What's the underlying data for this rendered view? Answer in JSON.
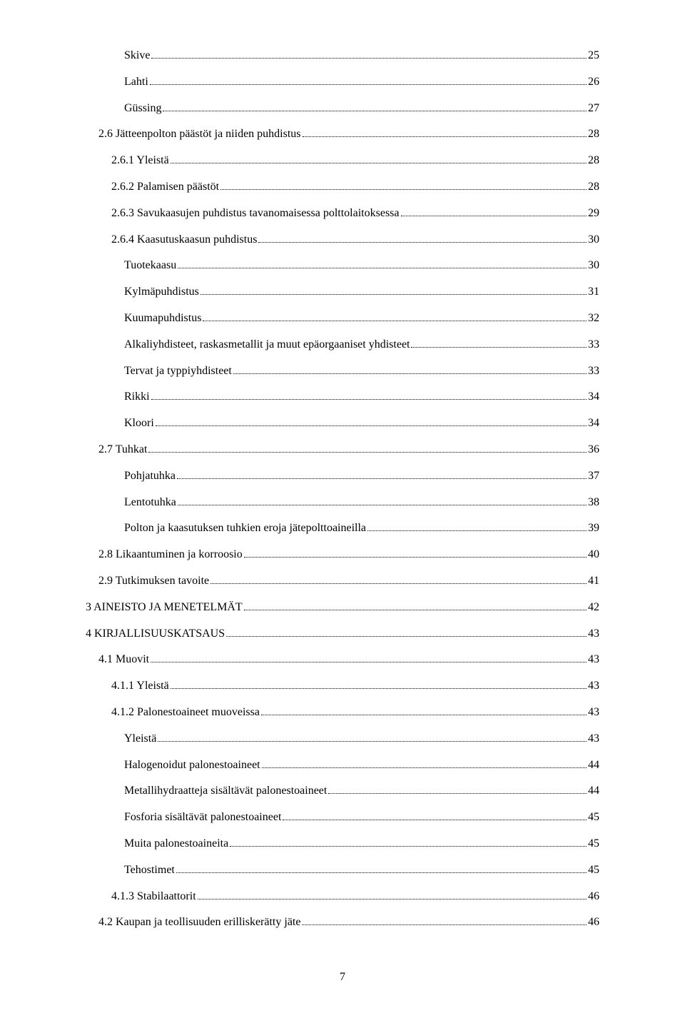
{
  "page_number": "7",
  "entries": [
    {
      "indent": 4,
      "label": "Skive",
      "page": "25"
    },
    {
      "indent": 4,
      "label": "Lahti",
      "page": "26"
    },
    {
      "indent": 4,
      "label": "Güssing",
      "page": "27"
    },
    {
      "indent": 2,
      "label": "2.6 Jätteenpolton päästöt ja niiden puhdistus",
      "page": "28"
    },
    {
      "indent": 3,
      "label": "2.6.1 Yleistä",
      "page": "28"
    },
    {
      "indent": 3,
      "label": "2.6.2 Palamisen päästöt",
      "page": "28"
    },
    {
      "indent": 3,
      "label": "2.6.3 Savukaasujen puhdistus tavanomaisessa polttolaitoksessa",
      "page": "29"
    },
    {
      "indent": 3,
      "label": "2.6.4 Kaasutuskaasun puhdistus",
      "page": "30"
    },
    {
      "indent": 4,
      "label": "Tuotekaasu",
      "page": "30"
    },
    {
      "indent": 4,
      "label": "Kylmäpuhdistus",
      "page": "31"
    },
    {
      "indent": 4,
      "label": "Kuumapuhdistus",
      "page": "32"
    },
    {
      "indent": 4,
      "label": "Alkaliyhdisteet, raskasmetallit ja muut epäorgaaniset yhdisteet",
      "page": "33"
    },
    {
      "indent": 4,
      "label": "Tervat ja typpiyhdisteet",
      "page": "33"
    },
    {
      "indent": 4,
      "label": "Rikki",
      "page": "34"
    },
    {
      "indent": 4,
      "label": "Kloori",
      "page": "34"
    },
    {
      "indent": 2,
      "label": "2.7 Tuhkat",
      "page": "36"
    },
    {
      "indent": 4,
      "label": "Pohjatuhka",
      "page": "37"
    },
    {
      "indent": 4,
      "label": "Lentotuhka",
      "page": "38"
    },
    {
      "indent": 4,
      "label": "Polton ja kaasutuksen tuhkien eroja jätepolttoaineilla",
      "page": "39"
    },
    {
      "indent": 2,
      "label": "2.8 Likaantuminen ja korroosio",
      "page": "40"
    },
    {
      "indent": 2,
      "label": "2.9 Tutkimuksen tavoite",
      "page": "41"
    },
    {
      "indent": 1,
      "label": "3 AINEISTO JA MENETELMÄT",
      "page": "42"
    },
    {
      "indent": 1,
      "label": "4 KIRJALLISUUSKATSAUS",
      "page": "43"
    },
    {
      "indent": 2,
      "label": "4.1 Muovit",
      "page": "43"
    },
    {
      "indent": 3,
      "label": "4.1.1 Yleistä",
      "page": "43"
    },
    {
      "indent": 3,
      "label": "4.1.2 Palonestoaineet muoveissa",
      "page": "43"
    },
    {
      "indent": 4,
      "label": "Yleistä",
      "page": "43"
    },
    {
      "indent": 4,
      "label": "Halogenoidut palonestoaineet",
      "page": "44"
    },
    {
      "indent": 4,
      "label": "Metallihydraatteja sisältävät palonestoaineet",
      "page": "44"
    },
    {
      "indent": 4,
      "label": "Fosforia sisältävät palonestoaineet",
      "page": "45"
    },
    {
      "indent": 4,
      "label": "Muita palonestoaineita",
      "page": "45"
    },
    {
      "indent": 4,
      "label": "Tehostimet",
      "page": "45"
    },
    {
      "indent": 3,
      "label": "4.1.3 Stabilaattorit",
      "page": "46"
    },
    {
      "indent": 2,
      "label": "4.2 Kaupan ja teollisuuden erilliskerätty jäte",
      "page": "46"
    }
  ]
}
